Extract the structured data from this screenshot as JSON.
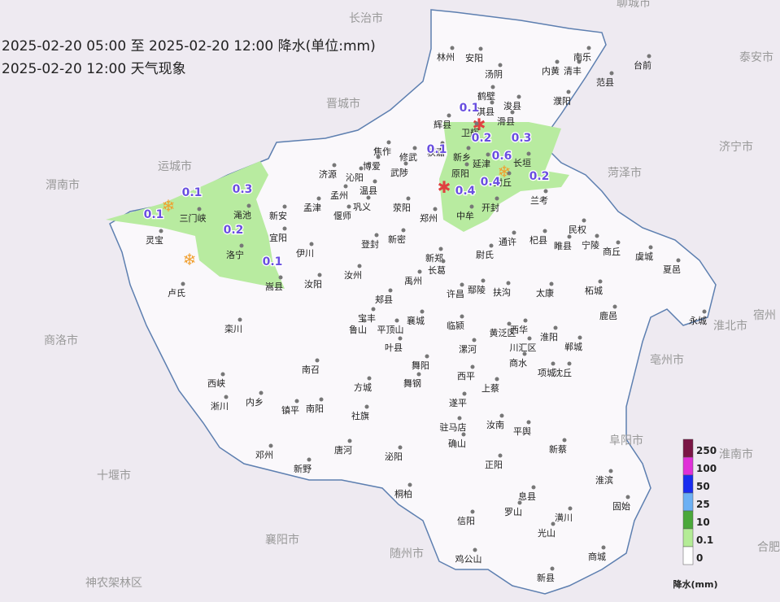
{
  "header": {
    "line1": "2025-02-20 05:00 至 2025-02-20 12:00 降水(单位:mm)",
    "line2": "2025-02-20 12:00 天气现象"
  },
  "precip_labels": [
    0.1,
    0.1,
    0.3,
    0.2,
    0.1,
    0.1,
    0.2,
    0.1,
    0.6,
    0.3,
    0.2,
    0.4,
    0.4
  ],
  "counties": [
    "林州",
    "安阳",
    "汤阴",
    "鹤壁",
    "淇县",
    "浚县",
    "滑县",
    "卫辉",
    "辉县",
    "内黄",
    "清丰",
    "南乐",
    "台前",
    "范县",
    "濮阳",
    "获嘉",
    "新乡",
    "延津",
    "长垣",
    "原阳",
    "封丘",
    "兰考",
    "开封",
    "中牟",
    "郑州",
    "荥阳",
    "巩义",
    "偃师",
    "孟州",
    "孟津",
    "温县",
    "博爱",
    "焦作",
    "修武",
    "武陟",
    "沁阳",
    "济源",
    "新安",
    "渑池",
    "三门峡",
    "灵宝",
    "宜阳",
    "洛宁",
    "伊川",
    "嵩县",
    "汝阳",
    "卢氏",
    "栾川",
    "登封",
    "新密",
    "新郑",
    "长葛",
    "尉氏",
    "通许",
    "杞县",
    "睢县",
    "民权",
    "宁陵",
    "商丘",
    "虞城",
    "夏邑",
    "汝州",
    "禹州",
    "许昌",
    "鄢陵",
    "扶沟",
    "太康",
    "柘城",
    "鹿邑",
    "永城",
    "郏县",
    "宝丰",
    "鲁山",
    "平顶山",
    "襄城",
    "临颍",
    "西华",
    "黄泛区",
    "淮阳",
    "郸城",
    "叶县",
    "漯河",
    "川汇区",
    "商水",
    "项城",
    "沈丘",
    "舞阳",
    "舞钢",
    "南召",
    "方城",
    "西平",
    "上蔡",
    "西峡",
    "淅川",
    "内乡",
    "镇平",
    "南阳",
    "社旗",
    "遂平",
    "驻马店",
    "汝南",
    "平舆",
    "确山",
    "新蔡",
    "泌阳",
    "唐河",
    "邓州",
    "新野",
    "正阳",
    "淮滨",
    "桐柏",
    "息县",
    "固始",
    "罗山",
    "潢川",
    "信阳",
    "光山",
    "商城",
    "鸡公山",
    "新县"
  ],
  "neighbors": [
    "长治市",
    "聊城市",
    "晋城市",
    "运城市",
    "渭南市",
    "菏泽市",
    "泰安市",
    "济宁市",
    "商洛市",
    "淮北市",
    "宿州",
    "亳州市",
    "十堰市",
    "阜阳市",
    "淮南市",
    "襄阳市",
    "随州市",
    "合肥",
    "神农架林区"
  ],
  "legend": {
    "title": "降水(mm)",
    "levels": [
      250,
      100,
      50,
      25,
      10,
      0.1,
      0
    ],
    "colors": [
      "#7a1545",
      "#e030d8",
      "#1a2cf0",
      "#6cb0f4",
      "#4aa83a",
      "#b4ec96",
      "#ffffff"
    ]
  }
}
